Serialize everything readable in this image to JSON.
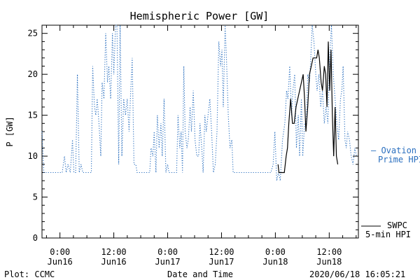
{
  "chart_data": {
    "type": "line",
    "title": "Hemispheric Power [GW]",
    "ylabel": "P [GW]",
    "xlabel": "Date and Time",
    "ylim": [
      0,
      26
    ],
    "yticks": [
      0,
      5,
      10,
      15,
      20,
      25
    ],
    "x_unit": "hours since 2020-06-15 00:00 UT",
    "xlim": [
      20.0,
      90.5
    ],
    "xticks": [
      {
        "x": 24,
        "time": "0:00",
        "date": "Jun16"
      },
      {
        "x": 36,
        "time": "12:00",
        "date": "Jun16"
      },
      {
        "x": 48,
        "time": "0:00",
        "date": "Jun17"
      },
      {
        "x": 60,
        "time": "12:00",
        "date": "Jun17"
      },
      {
        "x": 72,
        "time": "0:00",
        "date": "Jun18"
      },
      {
        "x": 84,
        "time": "12:00",
        "date": "Jun18"
      }
    ],
    "footer_left": "Plot: CCMC",
    "footer_right": "2020/06/18 16:05:21",
    "series": [
      {
        "name": "Ovation Prime HPI",
        "legend_line1": "— Ovation",
        "legend_line2": "Prime HPI",
        "color": "#2a6fbf",
        "style": "dotted",
        "points": [
          [
            20.0,
            13
          ],
          [
            20.4,
            8
          ],
          [
            22.0,
            8
          ],
          [
            24.5,
            8
          ],
          [
            25.0,
            10
          ],
          [
            25.4,
            8
          ],
          [
            25.8,
            9
          ],
          [
            26.3,
            8
          ],
          [
            26.8,
            12
          ],
          [
            27.1,
            8
          ],
          [
            27.5,
            8
          ],
          [
            27.9,
            20
          ],
          [
            28.3,
            8
          ],
          [
            28.7,
            9
          ],
          [
            29.1,
            8
          ],
          [
            31.0,
            8
          ],
          [
            31.3,
            21
          ],
          [
            31.7,
            16
          ],
          [
            32.0,
            15
          ],
          [
            32.3,
            17
          ],
          [
            32.7,
            14
          ],
          [
            33.1,
            10
          ],
          [
            33.4,
            19
          ],
          [
            33.8,
            17
          ],
          [
            34.2,
            25
          ],
          [
            34.6,
            19
          ],
          [
            34.9,
            21
          ],
          [
            35.3,
            17
          ],
          [
            35.7,
            25
          ],
          [
            36.0,
            20
          ],
          [
            36.4,
            26
          ],
          [
            36.7,
            26
          ],
          [
            37.1,
            9
          ],
          [
            37.4,
            26
          ],
          [
            37.8,
            10
          ],
          [
            38.2,
            17
          ],
          [
            38.6,
            15
          ],
          [
            39.0,
            17
          ],
          [
            39.4,
            13
          ],
          [
            39.7,
            17
          ],
          [
            40.1,
            22
          ],
          [
            40.5,
            9
          ],
          [
            40.9,
            9
          ],
          [
            41.2,
            8
          ],
          [
            44.0,
            8
          ],
          [
            44.3,
            11
          ],
          [
            44.7,
            10
          ],
          [
            45.0,
            13
          ],
          [
            45.4,
            8
          ],
          [
            45.7,
            15
          ],
          [
            46.1,
            11
          ],
          [
            46.5,
            14
          ],
          [
            46.8,
            10
          ],
          [
            47.2,
            17
          ],
          [
            47.6,
            8
          ],
          [
            48.0,
            9
          ],
          [
            48.3,
            8
          ],
          [
            50.0,
            8
          ],
          [
            50.3,
            15
          ],
          [
            50.7,
            11
          ],
          [
            51.0,
            13
          ],
          [
            51.3,
            8
          ],
          [
            51.6,
            21
          ],
          [
            51.9,
            13
          ],
          [
            52.3,
            11
          ],
          [
            52.6,
            12
          ],
          [
            53.0,
            16
          ],
          [
            53.3,
            13
          ],
          [
            53.7,
            18
          ],
          [
            54.1,
            12
          ],
          [
            54.5,
            10
          ],
          [
            54.9,
            10
          ],
          [
            55.2,
            14
          ],
          [
            55.6,
            11
          ],
          [
            55.9,
            8
          ],
          [
            56.3,
            15
          ],
          [
            56.6,
            13
          ],
          [
            57.0,
            15
          ],
          [
            57.4,
            17
          ],
          [
            57.8,
            13
          ],
          [
            58.2,
            8
          ],
          [
            58.6,
            9
          ],
          [
            59.0,
            13
          ],
          [
            59.4,
            24
          ],
          [
            59.8,
            21
          ],
          [
            60.1,
            23
          ],
          [
            60.4,
            16
          ],
          [
            60.8,
            26
          ],
          [
            61.1,
            22
          ],
          [
            61.5,
            15
          ],
          [
            61.9,
            11
          ],
          [
            62.3,
            12
          ],
          [
            62.6,
            8
          ],
          [
            63.0,
            8
          ],
          [
            66.0,
            8
          ],
          [
            71.0,
            8
          ],
          [
            71.5,
            9
          ],
          [
            71.9,
            13
          ],
          [
            72.3,
            7
          ],
          [
            72.7,
            8
          ],
          [
            73.1,
            7
          ],
          [
            73.6,
            12
          ],
          [
            74.1,
            14
          ],
          [
            74.5,
            18
          ],
          [
            74.8,
            17
          ],
          [
            75.2,
            21
          ],
          [
            75.6,
            15
          ],
          [
            75.9,
            18
          ],
          [
            76.3,
            20
          ],
          [
            76.7,
            11
          ],
          [
            77.1,
            15
          ],
          [
            77.4,
            10
          ],
          [
            77.8,
            17
          ],
          [
            78.1,
            10
          ],
          [
            78.5,
            14
          ],
          [
            78.9,
            14
          ],
          [
            79.2,
            20
          ],
          [
            79.6,
            19
          ],
          [
            79.9,
            22
          ],
          [
            80.2,
            26
          ],
          [
            80.6,
            24
          ],
          [
            81.0,
            20
          ],
          [
            81.3,
            18
          ],
          [
            81.7,
            20
          ],
          [
            82.1,
            16
          ],
          [
            82.5,
            18
          ],
          [
            82.9,
            14
          ],
          [
            83.3,
            16
          ],
          [
            83.7,
            14
          ],
          [
            84.1,
            22
          ],
          [
            84.5,
            26
          ],
          [
            84.9,
            20
          ],
          [
            85.3,
            17
          ],
          [
            85.7,
            14
          ],
          [
            86.1,
            12
          ],
          [
            86.5,
            17
          ],
          [
            86.8,
            18
          ],
          [
            87.1,
            21
          ],
          [
            87.5,
            12
          ],
          [
            87.8,
            11
          ],
          [
            88.1,
            13
          ],
          [
            88.5,
            12
          ],
          [
            88.9,
            10
          ],
          [
            89.3,
            9
          ],
          [
            89.7,
            11
          ],
          [
            90.1,
            10
          ]
        ]
      },
      {
        "name": "SWPC 5-min HPI",
        "legend_line1": "SWPC",
        "legend_line2": "5-min HPI",
        "color": "#000000",
        "style": "solid",
        "points": [
          [
            72.6,
            9
          ],
          [
            72.8,
            8
          ],
          [
            74.0,
            8
          ],
          [
            74.4,
            10
          ],
          [
            74.7,
            11
          ],
          [
            75.0,
            14
          ],
          [
            75.4,
            17
          ],
          [
            75.8,
            14
          ],
          [
            76.2,
            14
          ],
          [
            76.6,
            16
          ],
          [
            77.0,
            17
          ],
          [
            77.4,
            18
          ],
          [
            77.8,
            19
          ],
          [
            78.2,
            20
          ],
          [
            78.5,
            17
          ],
          [
            78.8,
            13
          ],
          [
            79.2,
            16
          ],
          [
            79.6,
            20
          ],
          [
            80.0,
            21
          ],
          [
            80.4,
            22
          ],
          [
            80.8,
            22
          ],
          [
            81.2,
            22
          ],
          [
            81.5,
            23
          ],
          [
            81.8,
            22
          ],
          [
            82.2,
            19
          ],
          [
            82.5,
            18
          ],
          [
            82.9,
            21
          ],
          [
            83.2,
            20
          ],
          [
            83.5,
            16
          ],
          [
            83.8,
            24
          ],
          [
            84.1,
            18
          ],
          [
            84.4,
            23
          ],
          [
            84.7,
            15
          ],
          [
            85.0,
            10
          ],
          [
            85.3,
            16
          ],
          [
            85.6,
            10
          ],
          [
            85.9,
            9
          ]
        ]
      }
    ]
  }
}
